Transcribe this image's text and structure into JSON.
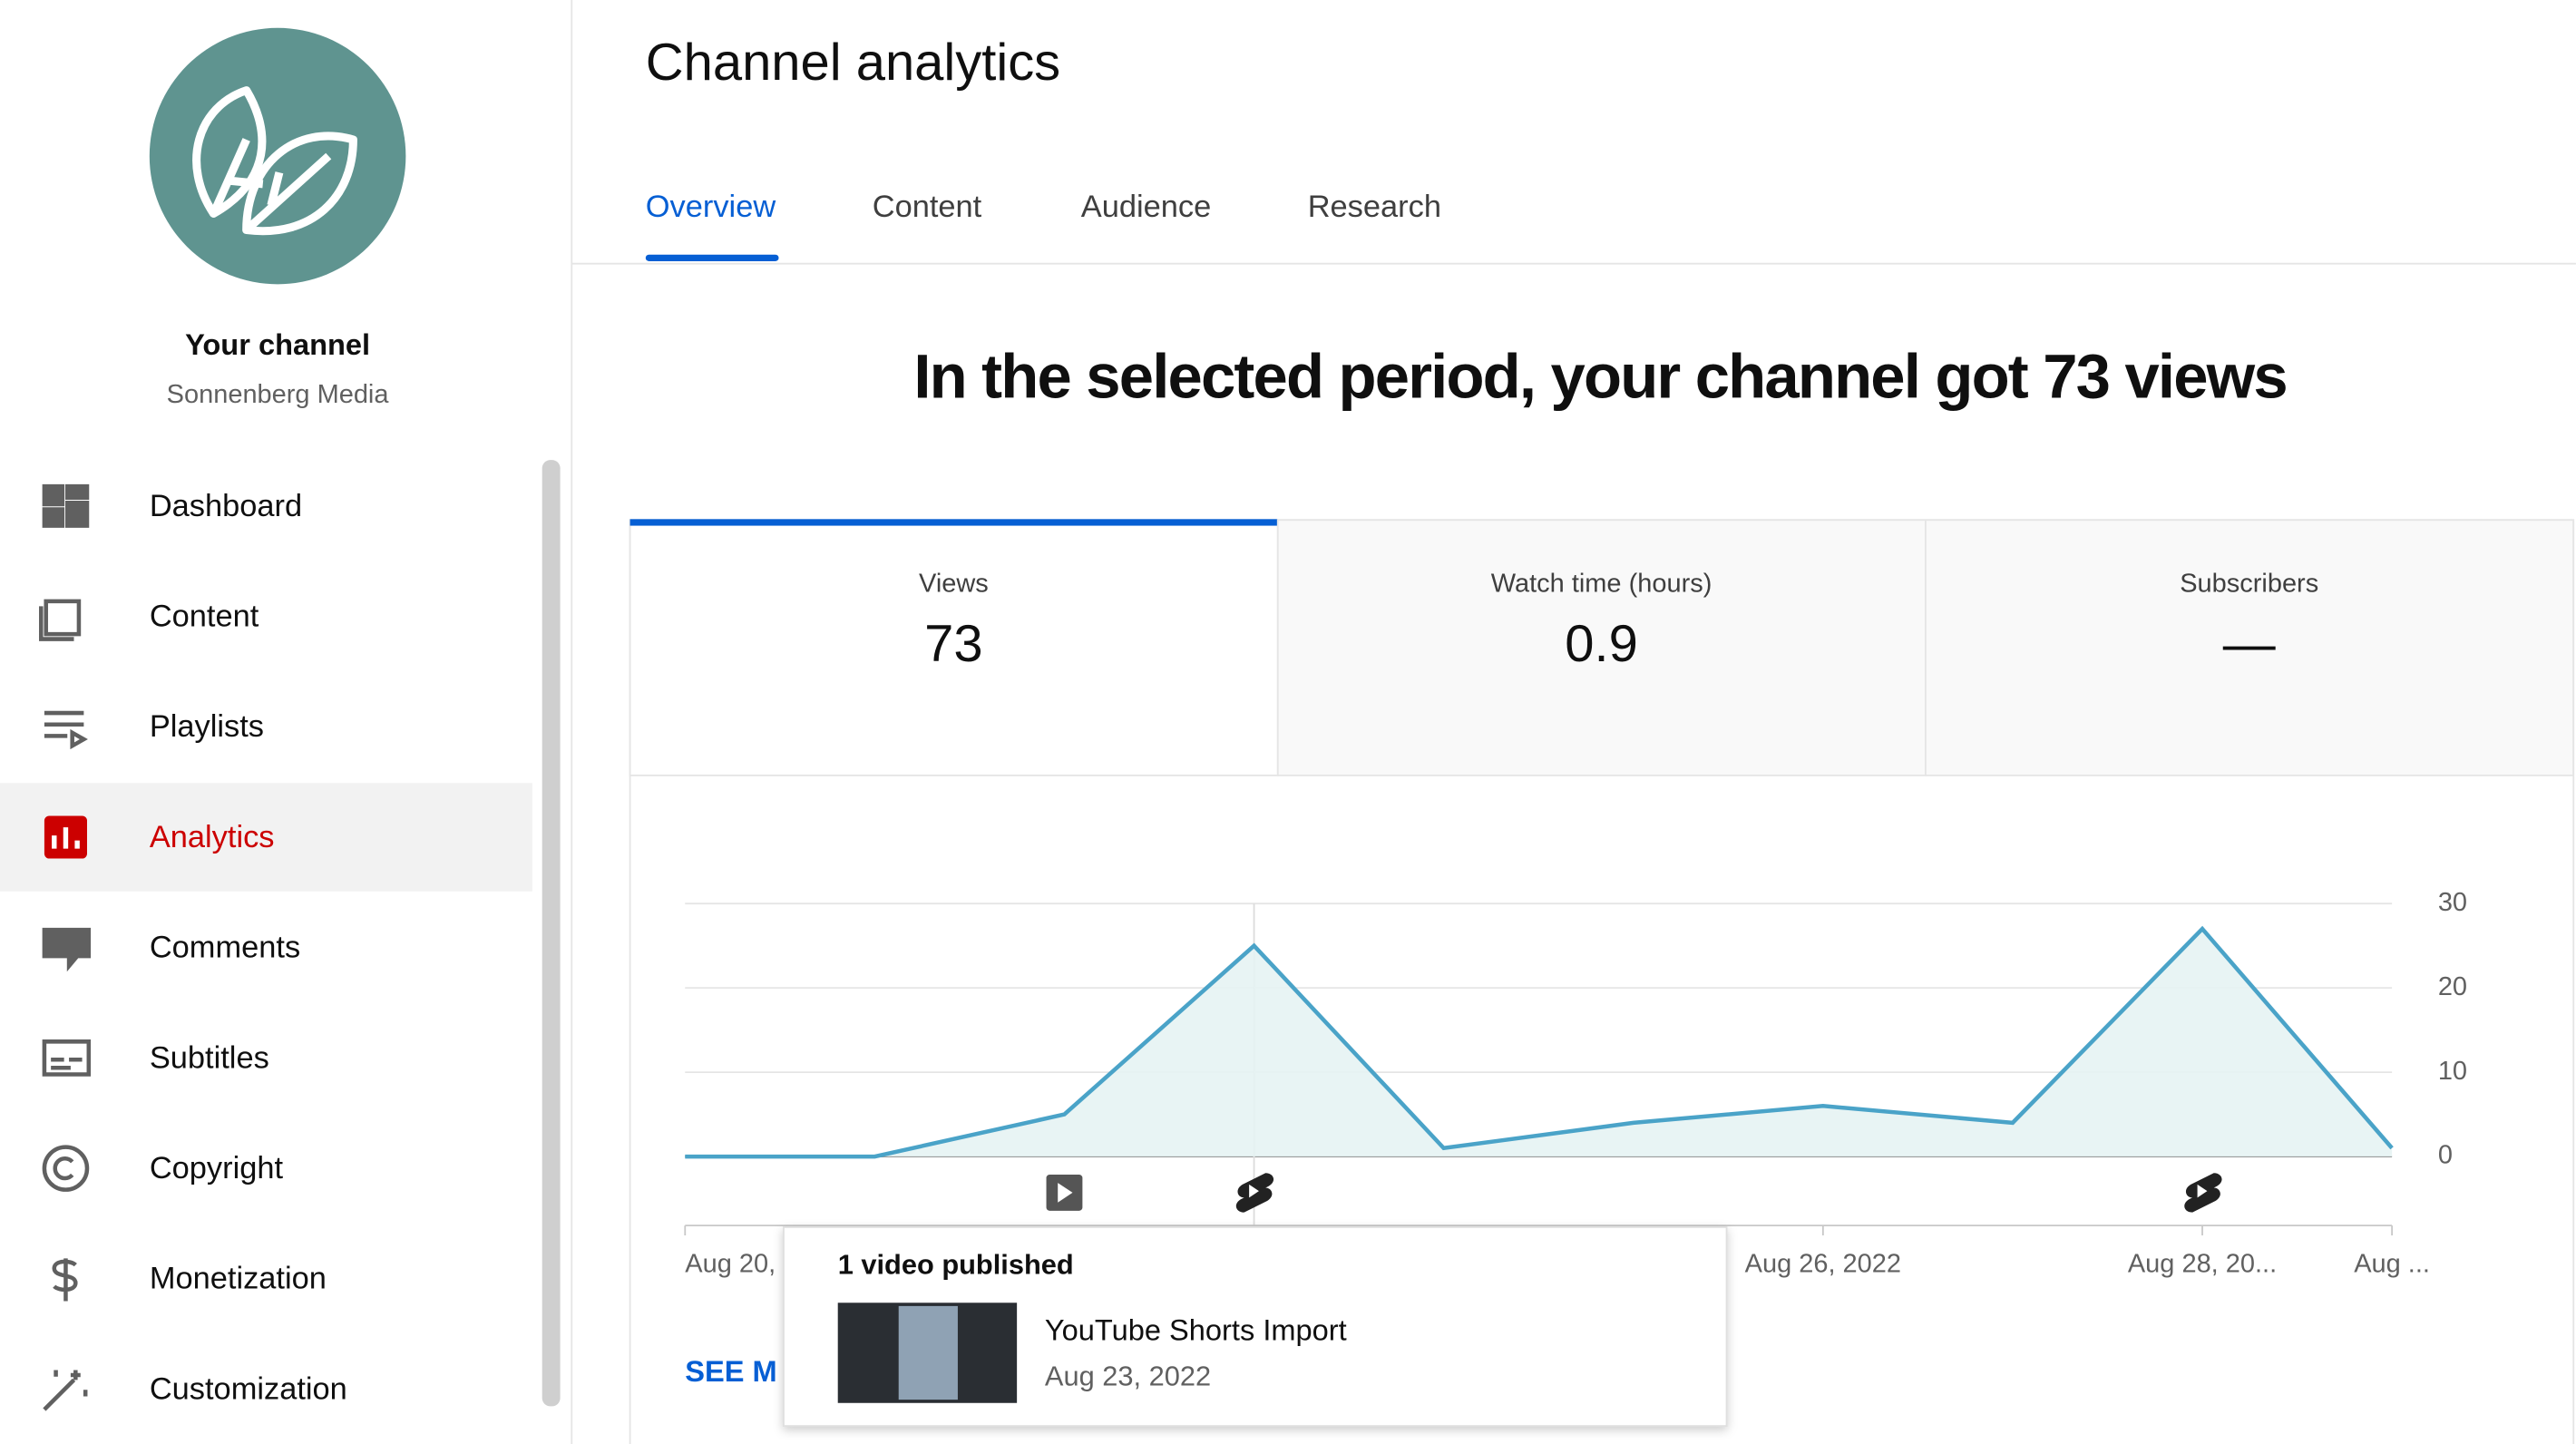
{
  "sidebar": {
    "channel_title": "Your channel",
    "channel_name": "Sonnenberg Media",
    "items": [
      "Dashboard",
      "Content",
      "Playlists",
      "Analytics",
      "Comments",
      "Subtitles",
      "Copyright",
      "Monetization",
      "Customization"
    ],
    "active": 3
  },
  "header": {
    "title": "Channel analytics",
    "tabs": [
      "Overview",
      "Content",
      "Audience",
      "Research"
    ]
  },
  "headline": "In the selected period, your channel got 73 views",
  "metrics": [
    {
      "label": "Views",
      "value": 73
    },
    {
      "label": "Watch time (hours)",
      "value": 0.9
    },
    {
      "label": "Subscribers",
      "value": "—"
    }
  ],
  "chart_data": {
    "type": "line",
    "categories": [
      "Aug 20,",
      null,
      null,
      null,
      null,
      null,
      "Aug 26, 2022",
      null,
      "Aug 28, 20...",
      "Aug ..."
    ],
    "values": [
      0,
      0,
      5,
      25,
      1,
      4,
      6,
      4,
      27,
      1
    ],
    "color": "#4aa3c8",
    "ylim": [
      0,
      30
    ],
    "yticks": [
      0,
      10,
      20,
      30
    ],
    "grid": true
  },
  "see_more": "SEE M",
  "tooltip": {
    "title": "1 video published",
    "video_title": "YouTube Shorts Import",
    "date": "Aug 23, 2022"
  }
}
